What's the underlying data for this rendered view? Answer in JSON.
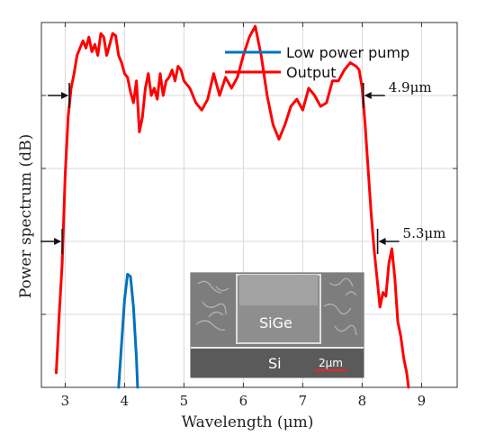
{
  "chart_data": {
    "type": "line",
    "xlabel": "Wavelength (μm)",
    "ylabel": "Power spectrum (dB)",
    "xlim": [
      2.6,
      9.6
    ],
    "ylim": [
      0,
      5
    ],
    "x_ticks": [
      "3",
      "4",
      "5",
      "6",
      "7",
      "8",
      "9"
    ],
    "y_ticks_count": 5,
    "grid": true,
    "legend_position": "top-right",
    "series": [
      {
        "name": "Low power pump",
        "color": "#0072BD",
        "x": [
          3.9,
          3.95,
          4.0,
          4.05,
          4.1,
          4.15,
          4.2,
          4.22
        ],
        "y": [
          0.0,
          0.6,
          1.2,
          1.55,
          1.52,
          1.1,
          0.4,
          0.0
        ]
      },
      {
        "name": "Output",
        "color": "#FF0000",
        "x": [
          2.85,
          2.9,
          2.95,
          3.0,
          3.05,
          3.1,
          3.15,
          3.2,
          3.25,
          3.3,
          3.35,
          3.4,
          3.45,
          3.5,
          3.55,
          3.6,
          3.65,
          3.7,
          3.75,
          3.8,
          3.85,
          3.9,
          3.95,
          4.0,
          4.05,
          4.1,
          4.15,
          4.2,
          4.25,
          4.3,
          4.35,
          4.4,
          4.45,
          4.5,
          4.55,
          4.6,
          4.65,
          4.7,
          4.75,
          4.8,
          4.85,
          4.9,
          4.95,
          5.0,
          5.1,
          5.2,
          5.3,
          5.4,
          5.5,
          5.6,
          5.7,
          5.8,
          5.9,
          6.0,
          6.1,
          6.2,
          6.3,
          6.4,
          6.5,
          6.6,
          6.7,
          6.8,
          6.9,
          7.0,
          7.1,
          7.2,
          7.3,
          7.4,
          7.5,
          7.6,
          7.7,
          7.8,
          7.9,
          7.95,
          8.0,
          8.05,
          8.1,
          8.15,
          8.2,
          8.25,
          8.3,
          8.35,
          8.4,
          8.45,
          8.5,
          8.55,
          8.6,
          8.65,
          8.7,
          8.75,
          8.78
        ],
        "y": [
          0.2,
          1.0,
          1.7,
          2.9,
          3.7,
          4.1,
          4.3,
          4.55,
          4.65,
          4.75,
          4.65,
          4.8,
          4.6,
          4.7,
          4.55,
          4.85,
          4.8,
          4.55,
          4.7,
          4.85,
          4.82,
          4.55,
          4.45,
          4.3,
          4.25,
          4.05,
          3.9,
          4.2,
          3.5,
          3.7,
          4.1,
          4.3,
          4.0,
          4.1,
          3.95,
          4.3,
          4.0,
          4.2,
          4.25,
          4.35,
          4.2,
          4.4,
          4.35,
          4.2,
          4.1,
          3.9,
          3.8,
          3.95,
          4.3,
          4.0,
          4.25,
          4.1,
          4.25,
          4.55,
          4.8,
          4.95,
          4.55,
          4.0,
          3.6,
          3.4,
          3.6,
          3.85,
          3.95,
          3.8,
          4.1,
          4.0,
          3.85,
          3.9,
          4.2,
          4.2,
          4.35,
          4.45,
          4.4,
          4.35,
          4.1,
          3.6,
          3.0,
          2.4,
          1.9,
          1.5,
          1.1,
          1.3,
          1.25,
          1.7,
          1.9,
          1.5,
          0.9,
          0.7,
          0.4,
          0.2,
          0.0
        ]
      }
    ],
    "annotations": [
      {
        "text": "4.9μm",
        "arrow_left_x": 3.07,
        "arrow_right_x": 8.02,
        "y": 4.0
      },
      {
        "text": "5.3μm",
        "arrow_left_x": 2.95,
        "arrow_right_x": 8.26,
        "y": 2.0
      }
    ],
    "inset": {
      "labels": [
        "SiGe",
        "Si",
        "2μm"
      ],
      "scale_bar_color": "#ff2020"
    }
  }
}
